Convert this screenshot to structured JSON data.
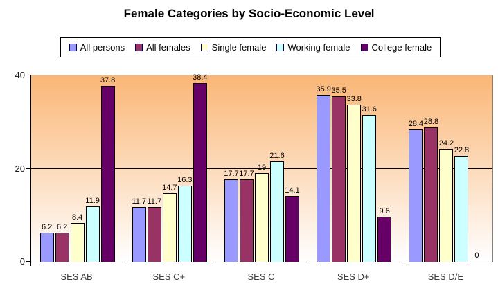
{
  "title": "Female Categories by Socio-Economic Level",
  "chart_data": {
    "type": "bar",
    "title": "Female Categories by Socio-Economic Level",
    "categories": [
      "SES AB",
      "SES C+",
      "SES C",
      "SES D+",
      "SES D/E"
    ],
    "series": [
      {
        "name": "All persons",
        "color": "#9999FF",
        "values": [
          6.2,
          11.7,
          17.7,
          35.9,
          28.4
        ]
      },
      {
        "name": "All females",
        "color": "#993366",
        "values": [
          6.2,
          11.7,
          17.7,
          35.5,
          28.8
        ]
      },
      {
        "name": "Single female",
        "color": "#FFFFCC",
        "values": [
          8.4,
          14.7,
          19,
          33.8,
          24.2
        ]
      },
      {
        "name": "Working female",
        "color": "#CCFFFF",
        "values": [
          11.9,
          16.3,
          21.6,
          31.6,
          22.8
        ]
      },
      {
        "name": "College female",
        "color": "#660066",
        "values": [
          37.8,
          38.4,
          14.1,
          9.6,
          0
        ]
      }
    ],
    "xlabel": "",
    "ylabel": "",
    "ylim": [
      0,
      40
    ],
    "yticks": [
      0,
      20,
      40
    ],
    "grid": "horizontal-at-20",
    "legend_position": "top",
    "data_labels": true,
    "plot_background_gradient": {
      "top": "#FAB676",
      "bottom": "#FFFFFF"
    }
  }
}
